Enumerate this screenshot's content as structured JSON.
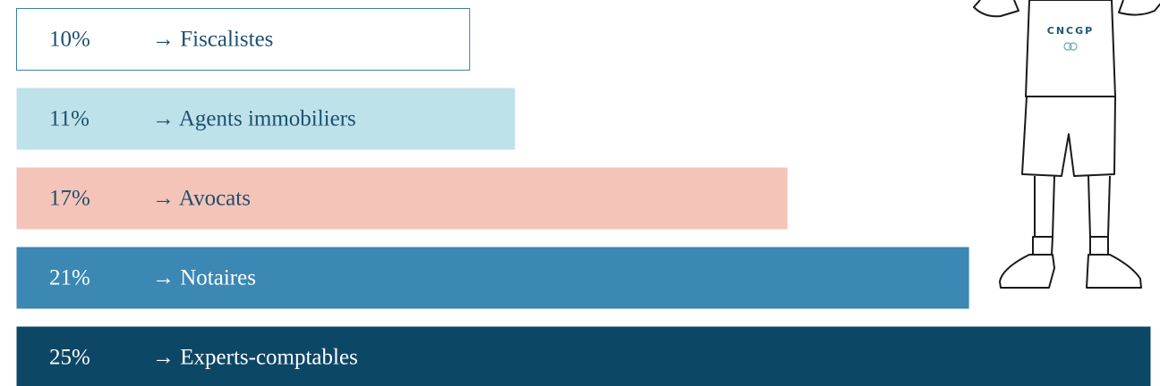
{
  "chart_data": {
    "type": "hbar",
    "categories": [
      "→ Fiscalistes",
      "→ Agents immobiliers",
      "→ Avocats",
      "→ Notaires",
      "→ Experts-comptables"
    ],
    "values": [
      10,
      11,
      17,
      21,
      25
    ],
    "value_labels": [
      "10%",
      "11%",
      "17%",
      "21%",
      "25%"
    ],
    "colors": [
      "#ffffff",
      "#bde2ea",
      "#f5c4b8",
      "#3a88b3",
      "#0d4766"
    ],
    "text_colors": [
      "#1d4f6e",
      "#1d4f6e",
      "#1d4f6e",
      "#ffffff",
      "#ffffff"
    ],
    "outline": "#3a7fa8",
    "annotation": "CNCGP"
  }
}
